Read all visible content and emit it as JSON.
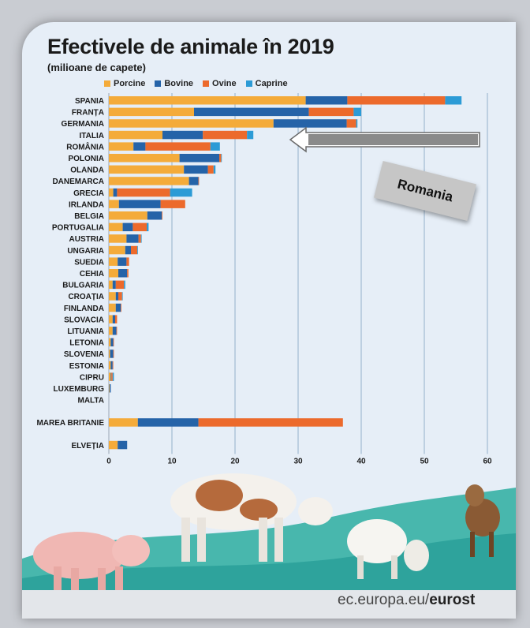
{
  "chart_data": {
    "type": "bar",
    "orientation": "horizontal",
    "stacked": true,
    "title": "Efectivele de animale în 2019",
    "subtitle": "(milioane de capete)",
    "xlim": [
      0,
      60
    ],
    "xticks": [
      0,
      10,
      20,
      30,
      40,
      50,
      60
    ],
    "grid": true,
    "legend_position": "top",
    "series": [
      {
        "name": "Porcine",
        "color": "#f4ab3a"
      },
      {
        "name": "Bovine",
        "color": "#2563a8"
      },
      {
        "name": "Ovine",
        "color": "#ec6a2c"
      },
      {
        "name": "Caprine",
        "color": "#2c9bd6"
      }
    ],
    "rows": [
      {
        "label": "SPANIA",
        "values": [
          31.2,
          6.6,
          15.5,
          2.6
        ]
      },
      {
        "label": "FRANȚA",
        "values": [
          13.5,
          18.2,
          7.1,
          1.2
        ]
      },
      {
        "label": "GERMANIA",
        "values": [
          26.1,
          11.6,
          1.5,
          0.2
        ]
      },
      {
        "label": "ITALIA",
        "values": [
          8.5,
          6.4,
          7.0,
          1.0
        ]
      },
      {
        "label": "ROMÂNIA",
        "values": [
          3.9,
          1.9,
          10.3,
          1.5
        ]
      },
      {
        "label": "POLONIA",
        "values": [
          11.2,
          6.3,
          0.3,
          0.1
        ]
      },
      {
        "label": "OLANDA",
        "values": [
          11.9,
          3.8,
          0.9,
          0.3
        ]
      },
      {
        "label": "DANEMARCA",
        "values": [
          12.7,
          1.5,
          0.1,
          0.0
        ]
      },
      {
        "label": "GRECIA",
        "values": [
          0.7,
          0.6,
          8.4,
          3.5
        ]
      },
      {
        "label": "IRLANDA",
        "values": [
          1.6,
          6.6,
          3.9,
          0.0
        ]
      },
      {
        "label": "BELGIA",
        "values": [
          6.1,
          2.3,
          0.1,
          0.0
        ]
      },
      {
        "label": "PORTUGALIA",
        "values": [
          2.2,
          1.6,
          2.2,
          0.3
        ]
      },
      {
        "label": "AUSTRIA",
        "values": [
          2.8,
          1.9,
          0.4,
          0.1
        ]
      },
      {
        "label": "UNGARIA",
        "values": [
          2.6,
          0.9,
          1.0,
          0.1
        ]
      },
      {
        "label": "SUEDIA",
        "values": [
          1.4,
          1.4,
          0.4,
          0.0
        ]
      },
      {
        "label": "CEHIA",
        "values": [
          1.5,
          1.4,
          0.2,
          0.0
        ]
      },
      {
        "label": "BULGARIA",
        "values": [
          0.6,
          0.5,
          1.3,
          0.2
        ]
      },
      {
        "label": "CROAȚIA",
        "values": [
          1.1,
          0.4,
          0.6,
          0.1
        ]
      },
      {
        "label": "FINLANDA",
        "values": [
          1.1,
          0.8,
          0.1,
          0.0
        ]
      },
      {
        "label": "SLOVACIA",
        "values": [
          0.6,
          0.4,
          0.3,
          0.0
        ]
      },
      {
        "label": "LITUANIA",
        "values": [
          0.6,
          0.6,
          0.1,
          0.0
        ]
      },
      {
        "label": "LETONIA",
        "values": [
          0.3,
          0.4,
          0.1,
          0.0
        ]
      },
      {
        "label": "SLOVENIA",
        "values": [
          0.2,
          0.5,
          0.1,
          0.0
        ]
      },
      {
        "label": "ESTONIA",
        "values": [
          0.3,
          0.3,
          0.1,
          0.0
        ]
      },
      {
        "label": "CIPRU",
        "values": [
          0.3,
          0.1,
          0.2,
          0.2
        ]
      },
      {
        "label": "LUXEMBURG",
        "values": [
          0.1,
          0.2,
          0.0,
          0.0
        ]
      },
      {
        "label": "MALTA",
        "values": [
          0.0,
          0.0,
          0.0,
          0.0
        ]
      },
      {
        "label": "MAREA BRITANIE",
        "values": [
          4.6,
          9.6,
          22.9,
          0.0
        ],
        "gap_before": true
      },
      {
        "label": "ELVEȚIA",
        "values": [
          1.4,
          1.5,
          0.0,
          0.0
        ],
        "gap_before": true
      }
    ]
  },
  "annotation": {
    "text": "Romania",
    "points_to": "ROMÂNIA"
  },
  "source": {
    "prefix": "ec.europa.eu/",
    "brand": "eurost"
  }
}
